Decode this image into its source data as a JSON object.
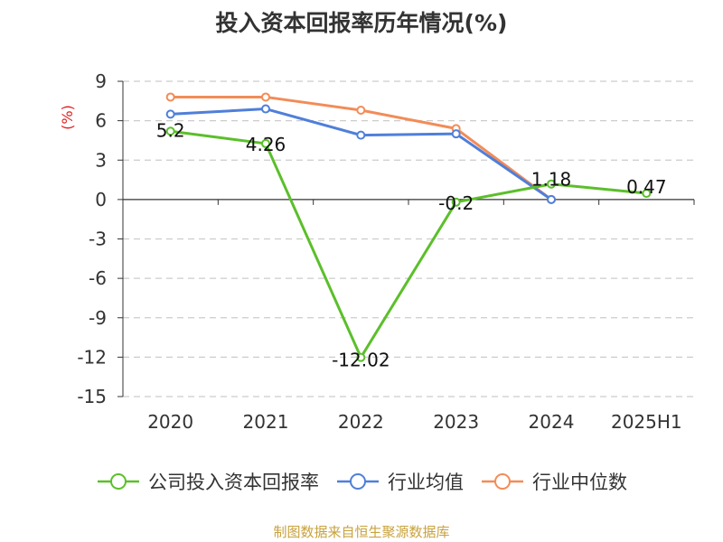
{
  "title": "投入资本回报率历年情况(%)",
  "source": "制图数据来自恒生聚源数据库",
  "chart_data": {
    "type": "line",
    "title": "投入资本回报率历年情况(%)",
    "ylabel": "(%)",
    "xlabel": "",
    "categories": [
      "2020",
      "2021",
      "2022",
      "2023",
      "2024",
      "2025H1"
    ],
    "ylim": [
      -15,
      9
    ],
    "yticks": [
      9,
      6,
      3,
      0,
      -3,
      -6,
      -9,
      -12,
      -15
    ],
    "grid": true,
    "legend_position": "bottom",
    "series": [
      {
        "name": "公司投入资本回报率",
        "color": "#5bbf2a",
        "values": [
          5.2,
          4.26,
          -12.02,
          -0.2,
          1.18,
          0.47
        ],
        "labels": [
          "5.2",
          "4.26",
          "-12.02",
          "-0.2",
          "1.18",
          "0.47"
        ]
      },
      {
        "name": "行业均值",
        "color": "#4f7fd9",
        "values": [
          6.5,
          6.9,
          4.9,
          5.0,
          0.0,
          null
        ]
      },
      {
        "name": "行业中位数",
        "color": "#f28c58",
        "values": [
          7.8,
          7.8,
          6.8,
          5.4,
          0.0,
          null
        ]
      }
    ]
  }
}
